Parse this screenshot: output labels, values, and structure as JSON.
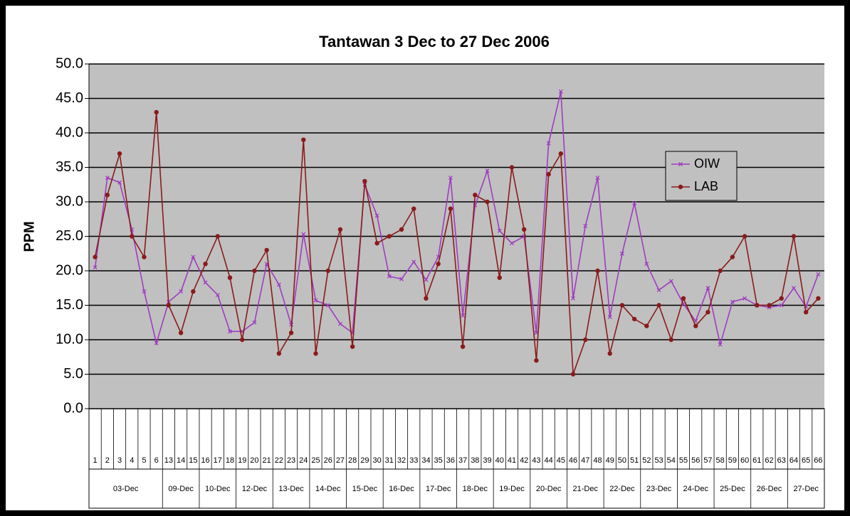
{
  "chart_data": {
    "type": "line",
    "title": "Tantawan 3 Dec to 27 Dec 2006",
    "y_label": "PPM",
    "categories": [
      "1",
      "2",
      "3",
      "4",
      "5",
      "6",
      "13",
      "14",
      "15",
      "16",
      "17",
      "18",
      "19",
      "20",
      "21",
      "22",
      "23",
      "24",
      "25",
      "26",
      "27",
      "28",
      "29",
      "30",
      "31",
      "32",
      "33",
      "34",
      "35",
      "36",
      "37",
      "38",
      "39",
      "40",
      "41",
      "42",
      "43",
      "44",
      "45",
      "46",
      "47",
      "48",
      "49",
      "50",
      "51",
      "52",
      "53",
      "54",
      "55",
      "56",
      "57",
      "58",
      "59",
      "60",
      "61",
      "62",
      "63",
      "64",
      "65",
      "66"
    ],
    "category_groups": [
      {
        "label": "03-Dec",
        "size": 6
      },
      {
        "label": "09-Dec",
        "size": 3
      },
      {
        "label": "10-Dec",
        "size": 3
      },
      {
        "label": "12-Dec",
        "size": 3
      },
      {
        "label": "13-Dec",
        "size": 3
      },
      {
        "label": "14-Dec",
        "size": 3
      },
      {
        "label": "15-Dec",
        "size": 3
      },
      {
        "label": "16-Dec",
        "size": 3
      },
      {
        "label": "17-Dec",
        "size": 3
      },
      {
        "label": "18-Dec",
        "size": 3
      },
      {
        "label": "19-Dec",
        "size": 3
      },
      {
        "label": "20-Dec",
        "size": 3
      },
      {
        "label": "21-Dec",
        "size": 3
      },
      {
        "label": "22-Dec",
        "size": 3
      },
      {
        "label": "23-Dec",
        "size": 3
      },
      {
        "label": "24-Dec",
        "size": 3
      },
      {
        "label": "25-Dec",
        "size": 3
      },
      {
        "label": "26-Dec",
        "size": 3
      },
      {
        "label": "27-Dec",
        "size": 3
      }
    ],
    "series": [
      {
        "name": "OIW",
        "color": "#a03cc0",
        "marker": "x",
        "values": [
          20.5,
          33.5,
          32.8,
          26,
          17,
          9.5,
          15.5,
          17,
          22,
          18.3,
          16.5,
          11.2,
          11.2,
          12.5,
          21,
          18,
          12.2,
          25.3,
          15.7,
          15,
          12.3,
          11,
          32.5,
          28,
          19.2,
          18.8,
          21.3,
          18.7,
          22,
          33.5,
          13.5,
          29.5,
          34.5,
          25.8,
          24,
          25,
          11,
          38.5,
          46,
          16,
          26.5,
          33.5,
          13.3,
          22.5,
          29.8,
          21,
          17.2,
          18.5,
          15.2,
          12.7,
          17.5,
          9.3,
          15.5,
          16,
          15,
          14.7,
          15,
          17.5,
          14.8,
          19.5
        ]
      },
      {
        "name": "LAB",
        "color": "#8b1a1a",
        "marker": "dot",
        "values": [
          22,
          31,
          37,
          25,
          22,
          43,
          15,
          11,
          17,
          21,
          25,
          19,
          10,
          20,
          23,
          8,
          11,
          39,
          8,
          20,
          26,
          9,
          33,
          24,
          25,
          26,
          29,
          16,
          21,
          29,
          9,
          31,
          30,
          19,
          35,
          26,
          7,
          34,
          37,
          5,
          10,
          20,
          8,
          15,
          13,
          12,
          15,
          10,
          16,
          12,
          14,
          20,
          22,
          25,
          15,
          15,
          16,
          25,
          14,
          16
        ]
      }
    ],
    "ylim": [
      0,
      50
    ],
    "yticks": [
      {
        "value": 0,
        "label": "0.0"
      },
      {
        "value": 5,
        "label": "5.0"
      },
      {
        "value": 10,
        "label": "10.0"
      },
      {
        "value": 15,
        "label": "15.0"
      },
      {
        "value": 20,
        "label": "20.0"
      },
      {
        "value": 25,
        "label": "25.0"
      },
      {
        "value": 30,
        "label": "30.0"
      },
      {
        "value": 35,
        "label": "35.0"
      },
      {
        "value": 40,
        "label": "40.0"
      },
      {
        "value": 45,
        "label": "45.0"
      },
      {
        "value": 50,
        "label": "50.0"
      }
    ],
    "grid": true,
    "plot_color": "#c0c0c0",
    "legend": "right"
  }
}
